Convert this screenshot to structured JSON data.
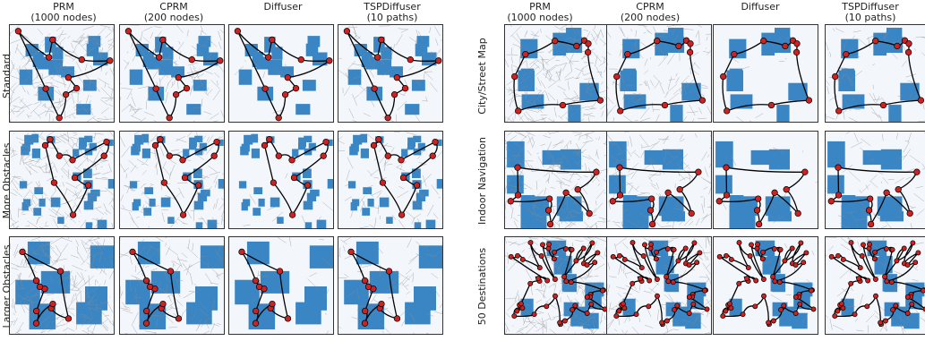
{
  "left": {
    "columns": [
      "PRM\n(1000 nodes)",
      "CPRM\n(200 nodes)",
      "Diffuser",
      "TSPDiffuser\n(10 paths)"
    ],
    "rows": [
      "Standard",
      "More Obstacles",
      "Larger Obstacles"
    ]
  },
  "right": {
    "columns": [
      "PRM\n(1000 nodes)",
      "CPRM\n(200 nodes)",
      "Diffuser",
      "TSPDiffuser\n(10 paths)"
    ],
    "rows": [
      "City/Street Map",
      "Indoor Navigation",
      "50 Destinations"
    ]
  },
  "colors": {
    "obstacle": "#3a86c4",
    "free_space": "#f3f7fc",
    "roadmap_edges": "#8a8a8a",
    "path": "#000000",
    "destination": "#cc2222"
  },
  "panel_grid": {
    "left_cols": 4,
    "left_rows": 3,
    "right_cols": 4,
    "right_rows": 3
  }
}
